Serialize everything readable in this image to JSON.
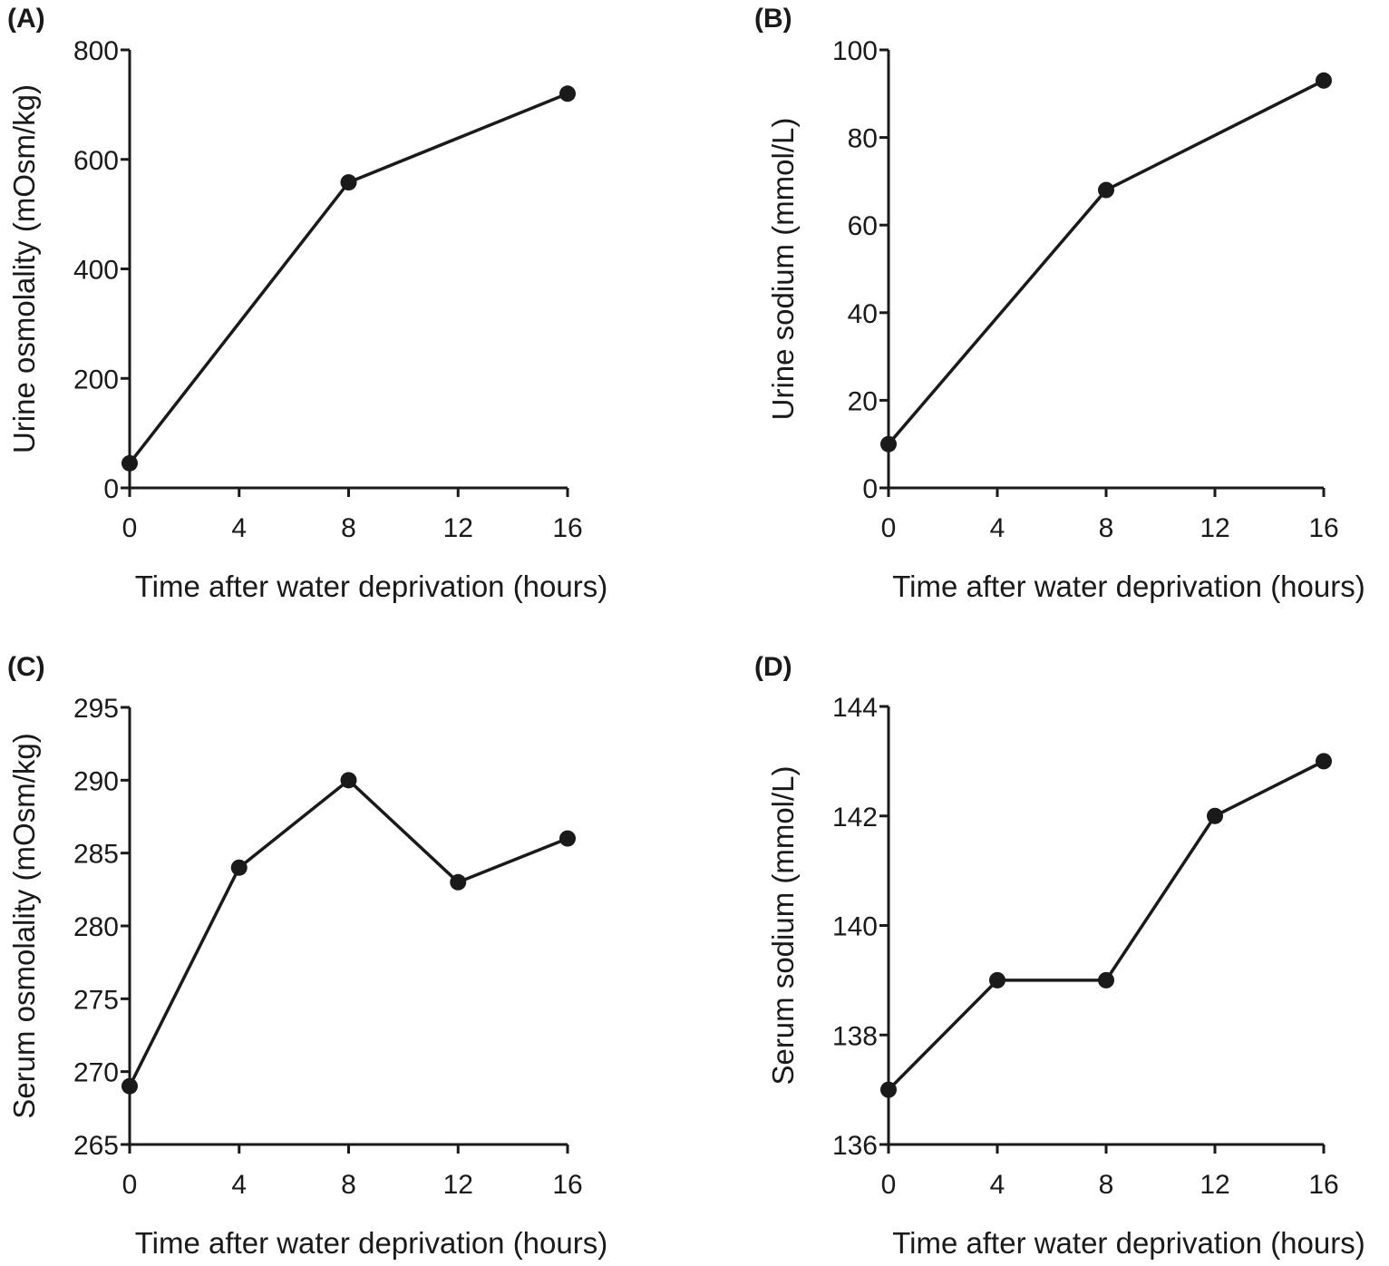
{
  "figure": {
    "colors": {
      "ink": "#1a1a1a",
      "background": "#ffffff"
    }
  },
  "chart_data": [
    {
      "panel_label": "(A)",
      "type": "line",
      "x": [
        0,
        8,
        16
      ],
      "series": [
        {
          "values": [
            45,
            558,
            720
          ]
        }
      ],
      "xlabel": "Time after water deprivation (hours)",
      "ylabel": "Urine osmolality (mOsm/kg)",
      "xlim": [
        0,
        16
      ],
      "ylim": [
        0,
        800
      ],
      "xticks": [
        0,
        4,
        8,
        12,
        16
      ],
      "yticks": [
        0,
        200,
        400,
        600,
        800
      ],
      "grid": false,
      "marker": "filled-circle"
    },
    {
      "panel_label": "(B)",
      "type": "line",
      "x": [
        0,
        8,
        16
      ],
      "series": [
        {
          "values": [
            10,
            68,
            93
          ]
        }
      ],
      "xlabel": "Time after water deprivation (hours)",
      "ylabel": "Urine sodium (mmol/L)",
      "xlim": [
        0,
        16
      ],
      "ylim": [
        0,
        100
      ],
      "xticks": [
        0,
        4,
        8,
        12,
        16
      ],
      "yticks": [
        0,
        20,
        40,
        60,
        80,
        100
      ],
      "grid": false,
      "marker": "filled-circle"
    },
    {
      "panel_label": "(C)",
      "type": "line",
      "x": [
        0,
        4,
        8,
        12,
        16
      ],
      "series": [
        {
          "values": [
            269,
            284,
            290,
            283,
            286
          ]
        }
      ],
      "xlabel": "Time after water deprivation (hours)",
      "ylabel": "Serum osmolality (mOsm/kg)",
      "xlim": [
        0,
        16
      ],
      "ylim": [
        265,
        295
      ],
      "xticks": [
        0,
        4,
        8,
        12,
        16
      ],
      "yticks": [
        265,
        270,
        275,
        280,
        285,
        290,
        295
      ],
      "grid": false,
      "marker": "filled-circle"
    },
    {
      "panel_label": "(D)",
      "type": "line",
      "x": [
        0,
        4,
        8,
        12,
        16
      ],
      "series": [
        {
          "values": [
            137,
            139,
            139,
            142,
            143
          ]
        }
      ],
      "xlabel": "Time after water deprivation (hours)",
      "ylabel": "Serum sodium (mmol/L)",
      "xlim": [
        0,
        16
      ],
      "ylim": [
        136,
        144
      ],
      "xticks": [
        0,
        4,
        8,
        12,
        16
      ],
      "yticks": [
        136,
        138,
        140,
        142,
        144
      ],
      "grid": false,
      "marker": "filled-circle"
    }
  ]
}
